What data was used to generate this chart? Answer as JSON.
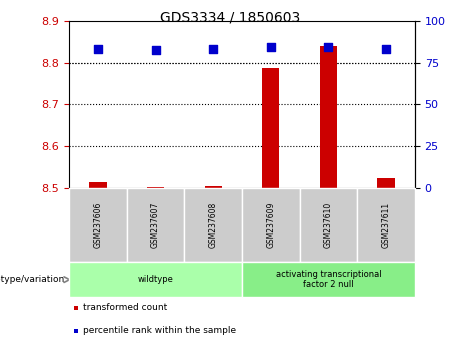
{
  "title": "GDS3334 / 1850603",
  "samples": [
    "GSM237606",
    "GSM237607",
    "GSM237608",
    "GSM237609",
    "GSM237610",
    "GSM237611"
  ],
  "red_values": [
    8.514,
    8.502,
    8.503,
    8.787,
    8.84,
    8.524
  ],
  "blue_values_pct": [
    83.5,
    82.8,
    83.5,
    84.5,
    84.8,
    83.5
  ],
  "ylim_left": [
    8.5,
    8.9
  ],
  "ylim_right": [
    0,
    100
  ],
  "yticks_left": [
    8.5,
    8.6,
    8.7,
    8.8,
    8.9
  ],
  "yticks_right": [
    0,
    25,
    50,
    75,
    100
  ],
  "left_color": "#cc0000",
  "right_color": "#0000cc",
  "blue_square_size": 30,
  "red_bar_width": 0.3,
  "groups": [
    {
      "label": "wildtype",
      "n": 3,
      "color": "#aaffaa"
    },
    {
      "label": "activating transcriptional\nfactor 2 null",
      "n": 3,
      "color": "#88ee88"
    }
  ],
  "legend_items": [
    {
      "color": "#cc0000",
      "label": "transformed count"
    },
    {
      "color": "#0000cc",
      "label": "percentile rank within the sample"
    }
  ],
  "genotype_label": "genotype/variation",
  "plot_bg": "#ffffff",
  "sample_box_color": "#cccccc",
  "grid_color": "#000000"
}
